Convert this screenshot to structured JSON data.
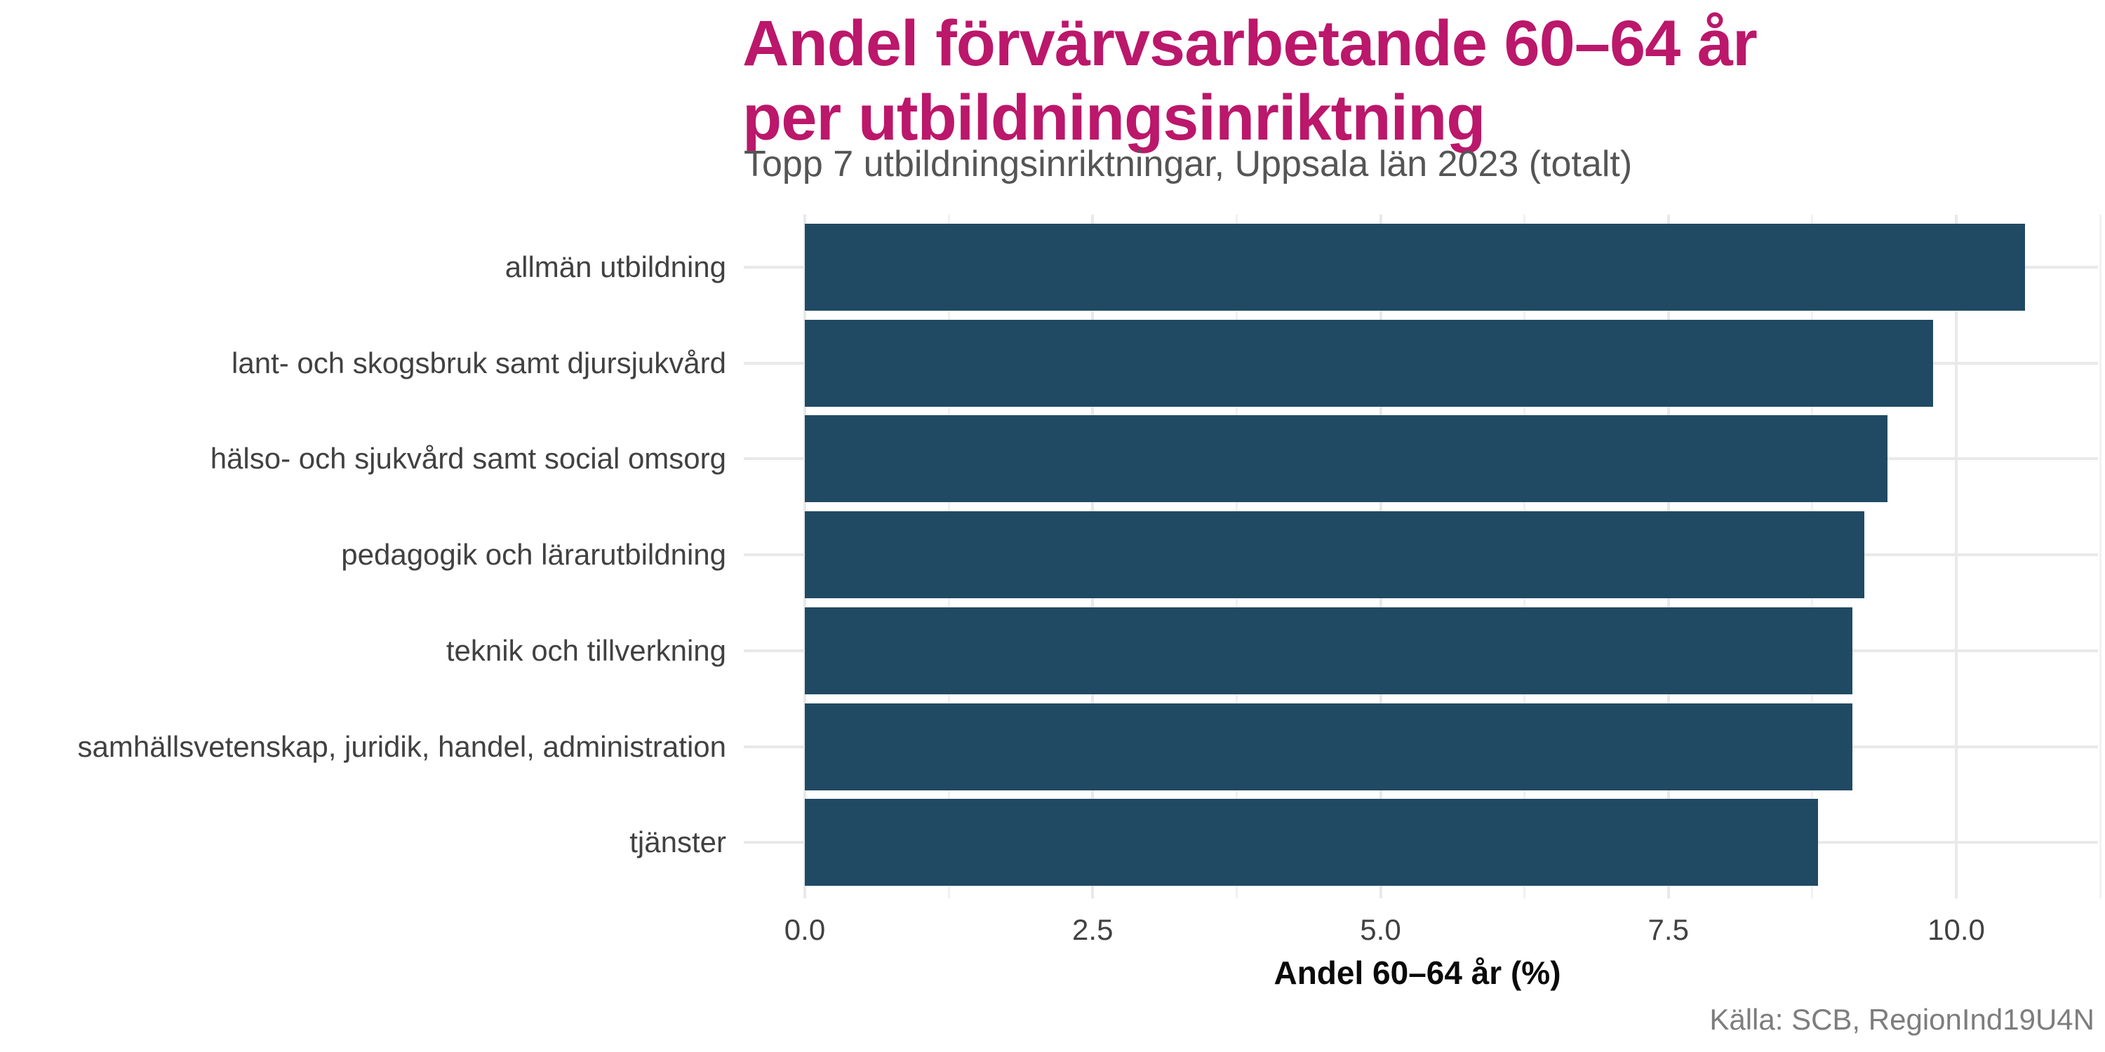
{
  "header": {
    "title_line1": "Andel förvärvsarbetande 60–64 år",
    "title_line2": "per utbildningsinriktning",
    "subtitle": "Topp 7 utbildningsinriktningar, Uppsala län 2023 (totalt)"
  },
  "footer": {
    "source": "Källa: SCB, RegionInd19U4N"
  },
  "chart_data": {
    "type": "bar",
    "orientation": "horizontal",
    "title": "Andel förvärvsarbetande 60–64 år per utbildningsinriktning",
    "subtitle": "Topp 7 utbildningsinriktningar, Uppsala län 2023 (totalt)",
    "categories": [
      "allmän utbildning",
      "lant- och skogsbruk samt djursjukvård",
      "hälso- och sjukvård samt social omsorg",
      "pedagogik och lärarutbildning",
      "teknik och tillverkning",
      "samhällsvetenskap, juridik, handel, administration",
      "tjänster"
    ],
    "values": [
      10.6,
      9.8,
      9.4,
      9.2,
      9.1,
      9.1,
      8.8
    ],
    "xlabel": "Andel 60–64 år (%)",
    "ylabel": "",
    "xlim": [
      0,
      11.25
    ],
    "xticks": [
      0,
      2.5,
      5,
      7.5,
      10
    ],
    "xtick_labels": [
      "0.0",
      "2.5",
      "5.0",
      "7.5",
      "10.0"
    ],
    "minor_xticks": [
      1.25,
      3.75,
      6.25,
      8.75,
      11.25
    ],
    "grid": true,
    "legend": false,
    "source": "Källa: SCB, RegionInd19U4N",
    "colors": {
      "bar": "#204A64",
      "title": "#BB176B",
      "subtitle": "#555555",
      "axis_text": "#414141",
      "axis_title": "#0a0a0a",
      "source_text": "#7d7d7d",
      "grid_major": "#E9E9E9",
      "grid_minor": "#F1F1F1",
      "background": "#ffffff"
    }
  }
}
